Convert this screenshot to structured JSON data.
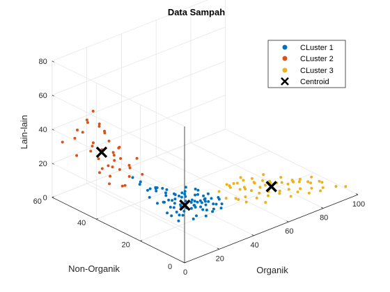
{
  "chart_data": {
    "type": "scatter",
    "title": "Data Sampah",
    "xlabel": "Organik",
    "ylabel": "Non-Organik",
    "zlabel": "Lain-lain",
    "xlim": [
      0,
      100
    ],
    "ylim": [
      0,
      60
    ],
    "zlim": [
      0,
      80
    ],
    "xticks": [
      "0",
      "20",
      "40",
      "60",
      "80",
      "100"
    ],
    "yticks": [
      "0",
      "20",
      "40",
      "60"
    ],
    "zticks": [
      "0",
      "20",
      "40",
      "60",
      "80"
    ],
    "grid": true,
    "legend_position": "top-right",
    "series": [
      {
        "name": "CLuster 1",
        "color": "#0072BD",
        "points": [
          [
            22,
            20,
            3
          ],
          [
            25,
            22,
            4
          ],
          [
            28,
            18,
            3
          ],
          [
            30,
            25,
            5
          ],
          [
            26,
            24,
            4
          ],
          [
            33,
            21,
            6
          ],
          [
            35,
            23,
            5
          ],
          [
            32,
            27,
            4
          ],
          [
            29,
            30,
            6
          ],
          [
            31,
            19,
            3
          ],
          [
            36,
            20,
            4
          ],
          [
            38,
            24,
            5
          ],
          [
            40,
            22,
            6
          ],
          [
            34,
            28,
            7
          ],
          [
            27,
            26,
            5
          ],
          [
            24,
            28,
            8
          ],
          [
            30,
            32,
            7
          ],
          [
            37,
            26,
            4
          ],
          [
            39,
            18,
            3
          ],
          [
            42,
            20,
            5
          ],
          [
            41,
            25,
            4
          ],
          [
            35,
            30,
            6
          ],
          [
            33,
            34,
            8
          ],
          [
            28,
            35,
            10
          ],
          [
            36,
            33,
            5
          ],
          [
            40,
            28,
            3
          ],
          [
            43,
            23,
            4
          ],
          [
            45,
            21,
            3
          ],
          [
            44,
            26,
            5
          ],
          [
            38,
            31,
            6
          ],
          [
            32,
            22,
            5
          ],
          [
            34,
            17,
            3
          ],
          [
            37,
            19,
            4
          ],
          [
            39,
            21,
            5
          ],
          [
            41,
            19,
            3
          ],
          [
            46,
            24,
            4
          ],
          [
            47,
            20,
            3
          ],
          [
            42,
            27,
            6
          ],
          [
            36,
            24,
            4
          ],
          [
            30,
            28,
            5
          ],
          [
            26,
            30,
            6
          ],
          [
            23,
            24,
            3
          ],
          [
            31,
            26,
            4
          ],
          [
            35,
            27,
            5
          ],
          [
            38,
            22,
            6
          ],
          [
            44,
            18,
            3
          ],
          [
            48,
            22,
            4
          ],
          [
            40,
            31,
            3
          ],
          [
            37,
            29,
            7
          ],
          [
            29,
            23,
            4
          ],
          [
            33,
            25,
            3
          ],
          [
            36,
            21,
            5
          ],
          [
            39,
            26,
            4
          ],
          [
            42,
            24,
            5
          ],
          [
            45,
            26,
            3
          ],
          [
            34,
            31,
            4
          ],
          [
            31,
            30,
            5
          ],
          [
            27,
            22,
            3
          ],
          [
            25,
            26,
            6
          ],
          [
            43,
            29,
            4
          ],
          [
            41,
            32,
            5
          ],
          [
            38,
            34,
            3
          ],
          [
            35,
            36,
            4
          ],
          [
            32,
            38,
            5
          ],
          [
            30,
            36,
            9
          ],
          [
            28,
            32,
            12
          ],
          [
            22,
            34,
            12
          ],
          [
            20,
            28,
            9
          ],
          [
            18,
            22,
            8
          ],
          [
            24,
            32,
            14
          ],
          [
            26,
            36,
            10
          ],
          [
            20,
            36,
            15
          ],
          [
            18,
            30,
            12
          ],
          [
            23,
            38,
            14
          ],
          [
            21,
            40,
            16
          ],
          [
            46,
            30,
            5
          ],
          [
            48,
            27,
            4
          ],
          [
            50,
            24,
            3
          ],
          [
            47,
            32,
            4
          ],
          [
            44,
            34,
            5
          ]
        ]
      },
      {
        "name": "CLuster 2",
        "color": "#D95319",
        "points": [
          [
            5,
            38,
            20
          ],
          [
            8,
            40,
            22
          ],
          [
            10,
            36,
            18
          ],
          [
            6,
            42,
            26
          ],
          [
            12,
            44,
            24
          ],
          [
            9,
            46,
            28
          ],
          [
            14,
            40,
            30
          ],
          [
            7,
            48,
            32
          ],
          [
            11,
            50,
            34
          ],
          [
            13,
            52,
            30
          ],
          [
            15,
            46,
            36
          ],
          [
            10,
            54,
            38
          ],
          [
            8,
            56,
            34
          ],
          [
            16,
            50,
            28
          ],
          [
            18,
            44,
            32
          ],
          [
            20,
            48,
            26
          ],
          [
            17,
            52,
            40
          ],
          [
            12,
            58,
            36
          ],
          [
            6,
            60,
            30
          ],
          [
            4,
            52,
            28
          ],
          [
            19,
            40,
            24
          ],
          [
            22,
            42,
            20
          ],
          [
            21,
            46,
            30
          ],
          [
            15,
            56,
            42
          ],
          [
            18,
            58,
            38
          ],
          [
            24,
            38,
            18
          ],
          [
            14,
            36,
            22
          ],
          [
            9,
            34,
            20
          ],
          [
            12,
            48,
            46
          ],
          [
            16,
            54,
            48
          ],
          [
            10,
            44,
            44
          ],
          [
            20,
            52,
            36
          ],
          [
            23,
            50,
            22
          ],
          [
            26,
            42,
            24
          ],
          [
            13,
            42,
            28
          ],
          [
            11,
            38,
            26
          ],
          [
            17,
            46,
            20
          ],
          [
            7,
            44,
            22
          ]
        ]
      },
      {
        "name": "CLuster 3",
        "color": "#EDB120",
        "points": [
          [
            55,
            20,
            3
          ],
          [
            58,
            18,
            4
          ],
          [
            60,
            22,
            5
          ],
          [
            62,
            16,
            3
          ],
          [
            64,
            20,
            4
          ],
          [
            66,
            18,
            3
          ],
          [
            68,
            22,
            6
          ],
          [
            70,
            17,
            3
          ],
          [
            72,
            20,
            4
          ],
          [
            74,
            15,
            3
          ],
          [
            76,
            18,
            5
          ],
          [
            78,
            14,
            3
          ],
          [
            80,
            16,
            4
          ],
          [
            82,
            12,
            3
          ],
          [
            84,
            14,
            5
          ],
          [
            86,
            10,
            3
          ],
          [
            88,
            12,
            4
          ],
          [
            90,
            8,
            3
          ],
          [
            92,
            10,
            4
          ],
          [
            95,
            6,
            3
          ],
          [
            57,
            24,
            6
          ],
          [
            59,
            26,
            5
          ],
          [
            61,
            24,
            7
          ],
          [
            63,
            22,
            4
          ],
          [
            65,
            24,
            3
          ],
          [
            67,
            26,
            5
          ],
          [
            69,
            20,
            4
          ],
          [
            71,
            24,
            3
          ],
          [
            73,
            22,
            5
          ],
          [
            75,
            20,
            4
          ],
          [
            77,
            22,
            3
          ],
          [
            79,
            18,
            4
          ],
          [
            81,
            20,
            5
          ],
          [
            83,
            16,
            4
          ],
          [
            85,
            18,
            3
          ],
          [
            87,
            16,
            4
          ],
          [
            89,
            14,
            3
          ],
          [
            91,
            14,
            5
          ],
          [
            93,
            12,
            3
          ],
          [
            54,
            18,
            4
          ],
          [
            56,
            16,
            3
          ],
          [
            62,
            12,
            3
          ],
          [
            66,
            14,
            4
          ],
          [
            70,
            12,
            5
          ],
          [
            74,
            10,
            3
          ],
          [
            78,
            10,
            4
          ],
          [
            82,
            8,
            3
          ],
          [
            86,
            6,
            4
          ],
          [
            60,
            28,
            4
          ],
          [
            64,
            28,
            3
          ],
          [
            68,
            28,
            5
          ],
          [
            72,
            26,
            4
          ],
          [
            98,
            4,
            3
          ],
          [
            52,
            22,
            3
          ],
          [
            53,
            26,
            4
          ],
          [
            76,
            24,
            6
          ]
        ]
      }
    ],
    "centroids": {
      "name": "Centroid",
      "color": "#000000",
      "points": [
        [
          32,
          25,
          5
        ],
        [
          12,
          47,
          30
        ],
        [
          73,
          18,
          4
        ]
      ]
    }
  }
}
